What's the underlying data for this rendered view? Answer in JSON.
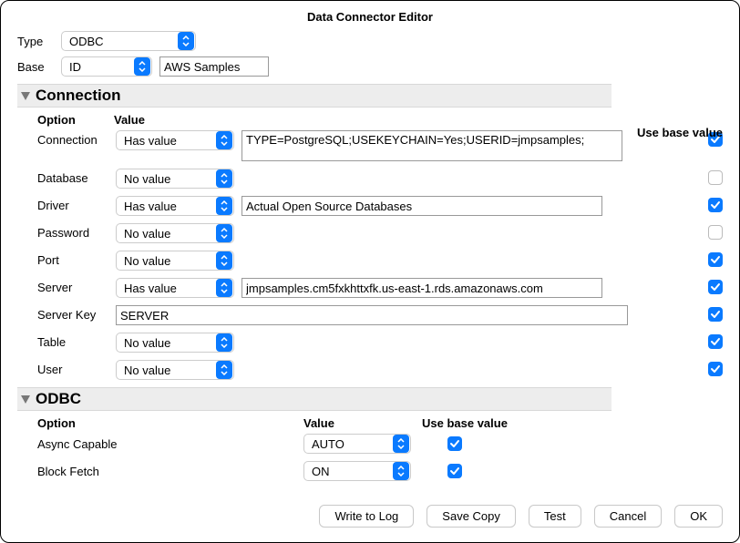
{
  "title": "Data Connector Editor",
  "topRow": {
    "typeLabel": "Type",
    "typeValue": "ODBC",
    "baseLabel": "Base",
    "baseSel": "ID",
    "baseInput": "AWS Samples"
  },
  "connection": {
    "title": "Connection",
    "headers": {
      "option": "Option",
      "value": "Value",
      "use": "Use base value"
    },
    "rows": [
      {
        "label": "Connection",
        "sel": "Has value",
        "val": "TYPE=PostgreSQL;USEKEYCHAIN=Yes;USERID=jmpsamples;",
        "checked": true,
        "multiline": true
      },
      {
        "label": "Database",
        "sel": "No value",
        "val": "",
        "checked": false
      },
      {
        "label": "Driver",
        "sel": "Has value",
        "val": "Actual Open Source Databases",
        "checked": true
      },
      {
        "label": "Password",
        "sel": "No value",
        "val": "",
        "checked": false
      },
      {
        "label": "Port",
        "sel": "No value",
        "val": "",
        "checked": true
      },
      {
        "label": "Server",
        "sel": "Has value",
        "val": "jmpsamples.cm5fxkhttxfk.us-east-1.rds.amazonaws.com",
        "checked": true
      },
      {
        "label": "Server Key",
        "sel": null,
        "val": "SERVER",
        "checked": true,
        "fullwidth": true
      },
      {
        "label": "Table",
        "sel": "No value",
        "val": "",
        "checked": true
      },
      {
        "label": "User",
        "sel": "No value",
        "val": "",
        "checked": true
      }
    ]
  },
  "odbc": {
    "title": "ODBC",
    "headers": {
      "option": "Option",
      "value": "Value",
      "use": "Use base value"
    },
    "rows": [
      {
        "label": "Async Capable",
        "val": "AUTO",
        "checked": true
      },
      {
        "label": "Block Fetch",
        "val": "ON",
        "checked": true
      }
    ]
  },
  "footer": {
    "writeLog": "Write to Log",
    "saveCopy": "Save Copy",
    "test": "Test",
    "cancel": "Cancel",
    "ok": "OK"
  },
  "colors": {
    "accent": "#0a7aff"
  }
}
